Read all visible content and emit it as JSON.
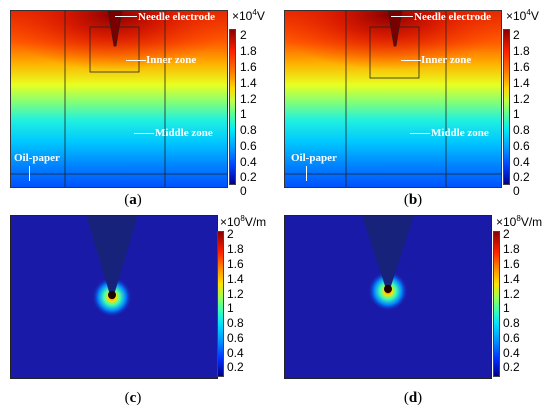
{
  "panels": [
    {
      "id": "a",
      "caption_letter": "a",
      "kind": "potential",
      "unit_base": "×10",
      "unit_exp": "4",
      "unit_tail": "V",
      "ticks": [
        "2",
        "1.8",
        "1.6",
        "1.4",
        "1.2",
        "1",
        "0.8",
        "0.6",
        "0.4",
        "0.2",
        "0"
      ],
      "labels": {
        "needle": "Needle electrode",
        "inner": "Inner zone",
        "middle": "Middle zone",
        "oil": "Oil-paper"
      }
    },
    {
      "id": "b",
      "caption_letter": "b",
      "kind": "potential",
      "unit_base": "×10",
      "unit_exp": "4",
      "unit_tail": "V",
      "ticks": [
        "2",
        "1.8",
        "1.6",
        "1.4",
        "1.2",
        "1",
        "0.8",
        "0.6",
        "0.4",
        "0.2",
        "0"
      ],
      "labels": {
        "needle": "Needle electrode",
        "inner": "Inner zone",
        "middle": "Middle zone",
        "oil": "Oil-paper"
      }
    },
    {
      "id": "c",
      "caption_letter": "c",
      "kind": "field",
      "unit_base": "×10",
      "unit_exp": "8",
      "unit_tail": "V/m",
      "ticks": [
        "2",
        "1.8",
        "1.6",
        "1.4",
        "1.2",
        "1",
        "0.8",
        "0.6",
        "0.4",
        "0.2"
      ]
    },
    {
      "id": "d",
      "caption_letter": "d",
      "kind": "field",
      "unit_base": "×10",
      "unit_exp": "8",
      "unit_tail": "V/m",
      "ticks": [
        "2",
        "1.8",
        "1.6",
        "1.4",
        "1.2",
        "1",
        "0.8",
        "0.6",
        "0.4",
        "0.2"
      ]
    }
  ],
  "colors": {
    "jet_top": "#8b0000",
    "jet_red": "#ff2a00",
    "jet_yellow": "#ffd800",
    "jet_green": "#70ff70",
    "jet_cyan": "#00e8ff",
    "jet_blue": "#0030ff",
    "jet_navy": "#00008b",
    "field_bg": "#1a1aa8",
    "needle": "#17237a"
  }
}
